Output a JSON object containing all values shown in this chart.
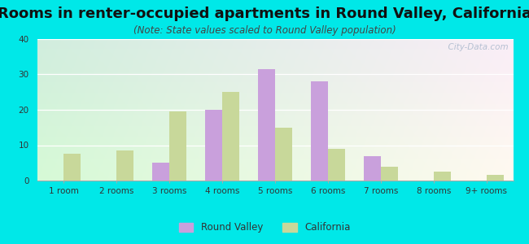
{
  "title": "Rooms in renter-occupied apartments in Round Valley, California",
  "subtitle": "(Note: State values scaled to Round Valley population)",
  "categories": [
    "1 room",
    "2 rooms",
    "3 rooms",
    "4 rooms",
    "5 rooms",
    "6 rooms",
    "7 rooms",
    "8 rooms",
    "9+ rooms"
  ],
  "round_valley": [
    0,
    0,
    5,
    20,
    31.5,
    28,
    7,
    0,
    0
  ],
  "california": [
    7.5,
    8.5,
    19.5,
    25,
    15,
    9,
    4,
    2.5,
    1.5
  ],
  "rv_color": "#c9a0dc",
  "ca_color": "#c8d89a",
  "bg_outer": "#00e8e8",
  "ylim": [
    0,
    40
  ],
  "yticks": [
    0,
    10,
    20,
    30,
    40
  ],
  "title_fontsize": 13,
  "subtitle_fontsize": 8.5,
  "tick_fontsize": 7.5,
  "legend_labels": [
    "Round Valley",
    "California"
  ],
  "watermark": "  City-Data.com",
  "bar_width": 0.32
}
